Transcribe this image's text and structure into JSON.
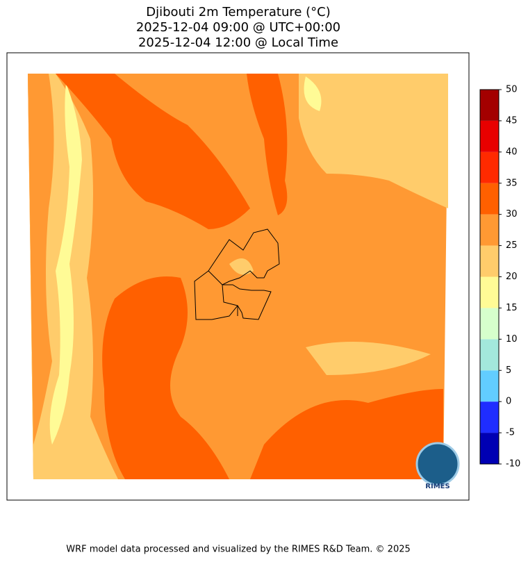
{
  "title": [
    "Djibouti 2m Temperature (°C)",
    "2025-12-04 09:00 @ UTC+00:00",
    "2025-12-04 12:00 @ Local Time"
  ],
  "colorbar": {
    "ticks": [
      -10,
      -5,
      0,
      5,
      10,
      15,
      20,
      25,
      30,
      35,
      40,
      45,
      50
    ],
    "colors": [
      "#0000b3",
      "#1f2dff",
      "#62cdff",
      "#a3e8dc",
      "#d6ffcc",
      "#fffb96",
      "#ffcc6b",
      "#ff9933",
      "#ff6000",
      "#ff2a00",
      "#e80000",
      "#a30000"
    ]
  },
  "logo": "RIMES",
  "footer": "WRF model data processed and visualized by the RIMES R&D Team. © 2025"
}
